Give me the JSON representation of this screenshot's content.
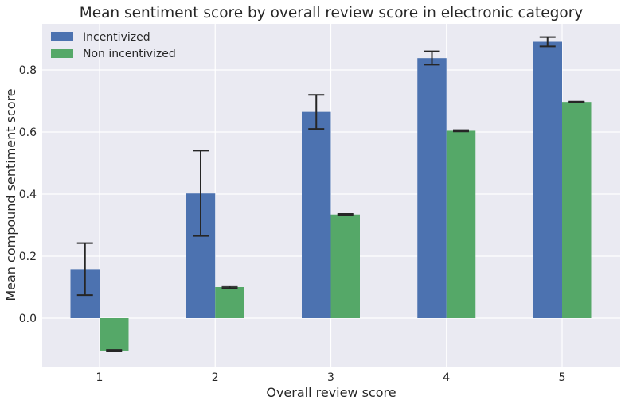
{
  "chart_data": {
    "type": "bar",
    "title": "Mean sentiment score by overall review score in electronic category",
    "xlabel": "Overall review score",
    "ylabel": "Mean compound sentiment score",
    "categories": [
      "1",
      "2",
      "3",
      "4",
      "5"
    ],
    "ylim": [
      -0.155,
      0.95
    ],
    "yticks": [
      0.0,
      0.2,
      0.4,
      0.6,
      0.8
    ],
    "ytick_labels": [
      "0.0",
      "0.2",
      "0.4",
      "0.6",
      "0.8"
    ],
    "grid": true,
    "legend_position": "top-left",
    "series": [
      {
        "name": "Incentivized",
        "color": "#4c72b0",
        "values": [
          0.158,
          0.402,
          0.665,
          0.838,
          0.891
        ],
        "err_low": [
          0.074,
          0.265,
          0.61,
          0.817,
          0.876
        ],
        "err_high": [
          0.242,
          0.54,
          0.72,
          0.86,
          0.906
        ]
      },
      {
        "name": "Non incentivized",
        "color": "#55a868",
        "values": [
          -0.105,
          0.1,
          0.334,
          0.604,
          0.697
        ],
        "err_low": [
          -0.107,
          0.097,
          0.332,
          0.602,
          0.696
        ],
        "err_high": [
          -0.103,
          0.103,
          0.336,
          0.606,
          0.698
        ]
      }
    ]
  }
}
